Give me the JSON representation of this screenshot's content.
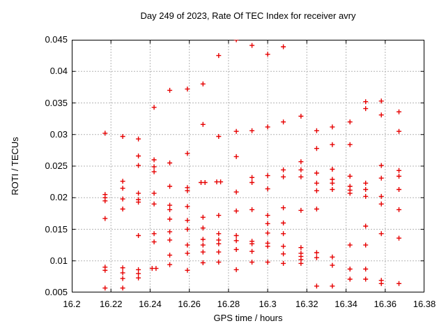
{
  "title": "Day 249 of 2023, Rate Of TEC Index for receiver avry",
  "chart_data": {
    "type": "scatter",
    "title": "Day 249 of 2023, Rate Of TEC Index for receiver avry",
    "xlabel": "GPS time / hours",
    "ylabel": "ROTI / TECUs",
    "xlim": [
      16.2,
      16.38
    ],
    "ylim": [
      0.005,
      0.045
    ],
    "xticks": [
      16.2,
      16.22,
      16.24,
      16.26,
      16.28,
      16.3,
      16.32,
      16.34,
      16.36,
      16.38
    ],
    "xtick_labels": [
      "16.2",
      "16.22",
      "16.24",
      "16.26",
      "16.28",
      "16.3",
      "16.32",
      "16.34",
      "16.36",
      "16.38"
    ],
    "yticks": [
      0.005,
      0.01,
      0.015,
      0.02,
      0.025,
      0.03,
      0.035,
      0.04,
      0.045
    ],
    "ytick_labels": [
      "0.005",
      "0.01",
      "0.015",
      "0.02",
      "0.025",
      "0.03",
      "0.035",
      "0.04",
      "0.045"
    ],
    "grid": true,
    "legend": "none",
    "marker": "plus",
    "marker_color": "#e60000",
    "grid_color": "#b4b4b4",
    "border_color": "#000000",
    "series_name": "ROTI",
    "points": [
      [
        16.217,
        0.0302
      ],
      [
        16.217,
        0.0205
      ],
      [
        16.217,
        0.02
      ],
      [
        16.217,
        0.0195
      ],
      [
        16.217,
        0.0167
      ],
      [
        16.217,
        0.009
      ],
      [
        16.217,
        0.0085
      ],
      [
        16.217,
        0.0057
      ],
      [
        16.226,
        0.0297
      ],
      [
        16.226,
        0.0226
      ],
      [
        16.226,
        0.0215
      ],
      [
        16.226,
        0.0198
      ],
      [
        16.226,
        0.0182
      ],
      [
        16.226,
        0.0089
      ],
      [
        16.226,
        0.0081
      ],
      [
        16.226,
        0.0072
      ],
      [
        16.226,
        0.0057
      ],
      [
        16.234,
        0.0293
      ],
      [
        16.234,
        0.0266
      ],
      [
        16.234,
        0.0251
      ],
      [
        16.234,
        0.0207
      ],
      [
        16.234,
        0.0197
      ],
      [
        16.234,
        0.0193
      ],
      [
        16.234,
        0.014
      ],
      [
        16.234,
        0.0086
      ],
      [
        16.234,
        0.008
      ],
      [
        16.234,
        0.0073
      ],
      [
        16.242,
        0.0343
      ],
      [
        16.242,
        0.026
      ],
      [
        16.242,
        0.0249
      ],
      [
        16.242,
        0.0241
      ],
      [
        16.242,
        0.0207
      ],
      [
        16.242,
        0.019
      ],
      [
        16.242,
        0.0143
      ],
      [
        16.242,
        0.013
      ],
      [
        16.241,
        0.0088
      ],
      [
        16.243,
        0.0088
      ],
      [
        16.25,
        0.037
      ],
      [
        16.25,
        0.0255
      ],
      [
        16.25,
        0.0218
      ],
      [
        16.25,
        0.0188
      ],
      [
        16.25,
        0.0181
      ],
      [
        16.25,
        0.0166
      ],
      [
        16.25,
        0.0146
      ],
      [
        16.25,
        0.0133
      ],
      [
        16.25,
        0.0109
      ],
      [
        16.25,
        0.0094
      ],
      [
        16.259,
        0.0372
      ],
      [
        16.259,
        0.027
      ],
      [
        16.259,
        0.0216
      ],
      [
        16.259,
        0.0211
      ],
      [
        16.259,
        0.0186
      ],
      [
        16.259,
        0.0164
      ],
      [
        16.259,
        0.015
      ],
      [
        16.259,
        0.0125
      ],
      [
        16.259,
        0.0112
      ],
      [
        16.259,
        0.0085
      ],
      [
        16.267,
        0.038
      ],
      [
        16.267,
        0.0316
      ],
      [
        16.266,
        0.0224
      ],
      [
        16.268,
        0.0224
      ],
      [
        16.267,
        0.0169
      ],
      [
        16.267,
        0.0152
      ],
      [
        16.267,
        0.0134
      ],
      [
        16.267,
        0.0125
      ],
      [
        16.267,
        0.0114
      ],
      [
        16.267,
        0.0097
      ],
      [
        16.275,
        0.0425
      ],
      [
        16.275,
        0.0297
      ],
      [
        16.274,
        0.0225
      ],
      [
        16.276,
        0.0225
      ],
      [
        16.275,
        0.0172
      ],
      [
        16.275,
        0.0143
      ],
      [
        16.275,
        0.0133
      ],
      [
        16.275,
        0.0127
      ],
      [
        16.275,
        0.0114
      ],
      [
        16.275,
        0.0098
      ],
      [
        16.284,
        0.045
      ],
      [
        16.284,
        0.0305
      ],
      [
        16.284,
        0.0265
      ],
      [
        16.284,
        0.0209
      ],
      [
        16.284,
        0.0179
      ],
      [
        16.284,
        0.014
      ],
      [
        16.284,
        0.0132
      ],
      [
        16.284,
        0.0118
      ],
      [
        16.284,
        0.0086
      ],
      [
        16.292,
        0.0441
      ],
      [
        16.292,
        0.0306
      ],
      [
        16.292,
        0.0232
      ],
      [
        16.292,
        0.0224
      ],
      [
        16.292,
        0.0181
      ],
      [
        16.292,
        0.0131
      ],
      [
        16.292,
        0.0127
      ],
      [
        16.292,
        0.0115
      ],
      [
        16.292,
        0.0098
      ],
      [
        16.3,
        0.0427
      ],
      [
        16.3,
        0.0312
      ],
      [
        16.3,
        0.0235
      ],
      [
        16.3,
        0.0214
      ],
      [
        16.3,
        0.0172
      ],
      [
        16.3,
        0.0159
      ],
      [
        16.3,
        0.0144
      ],
      [
        16.3,
        0.0128
      ],
      [
        16.3,
        0.0123
      ],
      [
        16.3,
        0.0098
      ],
      [
        16.308,
        0.0439
      ],
      [
        16.308,
        0.032
      ],
      [
        16.308,
        0.0244
      ],
      [
        16.308,
        0.0233
      ],
      [
        16.308,
        0.0184
      ],
      [
        16.308,
        0.016
      ],
      [
        16.308,
        0.0143
      ],
      [
        16.308,
        0.0123
      ],
      [
        16.308,
        0.0111
      ],
      [
        16.308,
        0.0096
      ],
      [
        16.317,
        0.0329
      ],
      [
        16.317,
        0.0257
      ],
      [
        16.317,
        0.0244
      ],
      [
        16.317,
        0.0233
      ],
      [
        16.317,
        0.018
      ],
      [
        16.317,
        0.0121
      ],
      [
        16.317,
        0.0112
      ],
      [
        16.317,
        0.0107
      ],
      [
        16.317,
        0.0102
      ],
      [
        16.317,
        0.0096
      ],
      [
        16.325,
        0.0306
      ],
      [
        16.325,
        0.0278
      ],
      [
        16.325,
        0.0239
      ],
      [
        16.325,
        0.0223
      ],
      [
        16.325,
        0.0211
      ],
      [
        16.325,
        0.0182
      ],
      [
        16.325,
        0.0113
      ],
      [
        16.325,
        0.0105
      ],
      [
        16.325,
        0.006
      ],
      [
        16.333,
        0.0312
      ],
      [
        16.333,
        0.0284
      ],
      [
        16.333,
        0.0245
      ],
      [
        16.333,
        0.0229
      ],
      [
        16.333,
        0.0223
      ],
      [
        16.333,
        0.0213
      ],
      [
        16.333,
        0.0106
      ],
      [
        16.333,
        0.0093
      ],
      [
        16.333,
        0.006
      ],
      [
        16.342,
        0.032
      ],
      [
        16.342,
        0.0284
      ],
      [
        16.342,
        0.0234
      ],
      [
        16.342,
        0.0218
      ],
      [
        16.342,
        0.0212
      ],
      [
        16.342,
        0.0207
      ],
      [
        16.342,
        0.0125
      ],
      [
        16.342,
        0.0087
      ],
      [
        16.342,
        0.0071
      ],
      [
        16.35,
        0.0352
      ],
      [
        16.35,
        0.0341
      ],
      [
        16.35,
        0.0223
      ],
      [
        16.35,
        0.0213
      ],
      [
        16.35,
        0.0202
      ],
      [
        16.35,
        0.0155
      ],
      [
        16.35,
        0.0125
      ],
      [
        16.35,
        0.0087
      ],
      [
        16.35,
        0.0071
      ],
      [
        16.358,
        0.0353
      ],
      [
        16.358,
        0.0331
      ],
      [
        16.358,
        0.0251
      ],
      [
        16.358,
        0.0231
      ],
      [
        16.358,
        0.0202
      ],
      [
        16.358,
        0.019
      ],
      [
        16.358,
        0.0143
      ],
      [
        16.358,
        0.0069
      ],
      [
        16.358,
        0.0064
      ],
      [
        16.367,
        0.0336
      ],
      [
        16.367,
        0.0305
      ],
      [
        16.367,
        0.0243
      ],
      [
        16.367,
        0.0234
      ],
      [
        16.367,
        0.0213
      ],
      [
        16.367,
        0.0181
      ],
      [
        16.367,
        0.0136
      ],
      [
        16.367,
        0.0064
      ]
    ]
  }
}
